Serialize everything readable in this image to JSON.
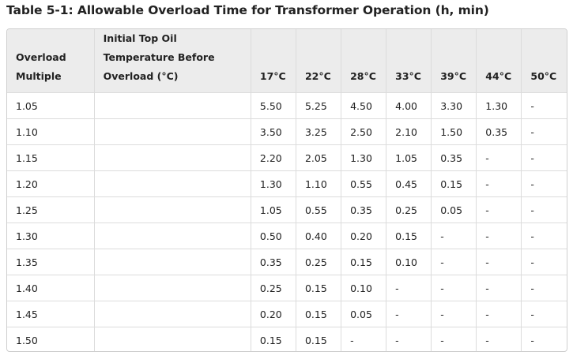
{
  "title": "Table 5-1: Allowable Overload Time for Transformer Operation (h, min)",
  "table": {
    "header": {
      "multiple_line1": "Overload",
      "multiple_line2": "Multiple",
      "initial_line1": "Initial Top Oil",
      "initial_line2": "Temperature Before",
      "initial_line3": "Overload (°C)",
      "temps": [
        "17°C",
        "22°C",
        "28°C",
        "33°C",
        "39°C",
        "44°C",
        "50°C"
      ]
    },
    "rows": [
      {
        "multiple": "1.05",
        "initial": "",
        "values": [
          "5.50",
          "5.25",
          "4.50",
          "4.00",
          "3.30",
          "1.30",
          "-"
        ]
      },
      {
        "multiple": "1.10",
        "initial": "",
        "values": [
          "3.50",
          "3.25",
          "2.50",
          "2.10",
          "1.50",
          "0.35",
          "-"
        ]
      },
      {
        "multiple": "1.15",
        "initial": "",
        "values": [
          "2.20",
          "2.05",
          "1.30",
          "1.05",
          "0.35",
          "-",
          "-"
        ]
      },
      {
        "multiple": "1.20",
        "initial": "",
        "values": [
          "1.30",
          "1.10",
          "0.55",
          "0.45",
          "0.15",
          "-",
          "-"
        ]
      },
      {
        "multiple": "1.25",
        "initial": "",
        "values": [
          "1.05",
          "0.55",
          "0.35",
          "0.25",
          "0.05",
          "-",
          "-"
        ]
      },
      {
        "multiple": "1.30",
        "initial": "",
        "values": [
          "0.50",
          "0.40",
          "0.20",
          "0.15",
          "-",
          "-",
          "-"
        ]
      },
      {
        "multiple": "1.35",
        "initial": "",
        "values": [
          "0.35",
          "0.25",
          "0.15",
          "0.10",
          "-",
          "-",
          "-"
        ]
      },
      {
        "multiple": "1.40",
        "initial": "",
        "values": [
          "0.25",
          "0.15",
          "0.10",
          "-",
          "-",
          "-",
          "-"
        ]
      },
      {
        "multiple": "1.45",
        "initial": "",
        "values": [
          "0.20",
          "0.15",
          "0.05",
          "-",
          "-",
          "-",
          "-"
        ]
      },
      {
        "multiple": "1.50",
        "initial": "",
        "values": [
          "0.15",
          "0.15",
          "-",
          "-",
          "-",
          "-",
          "-"
        ]
      }
    ]
  },
  "colors": {
    "header_background": "#ececec",
    "border": "#dcdcdc",
    "text": "#222222"
  }
}
